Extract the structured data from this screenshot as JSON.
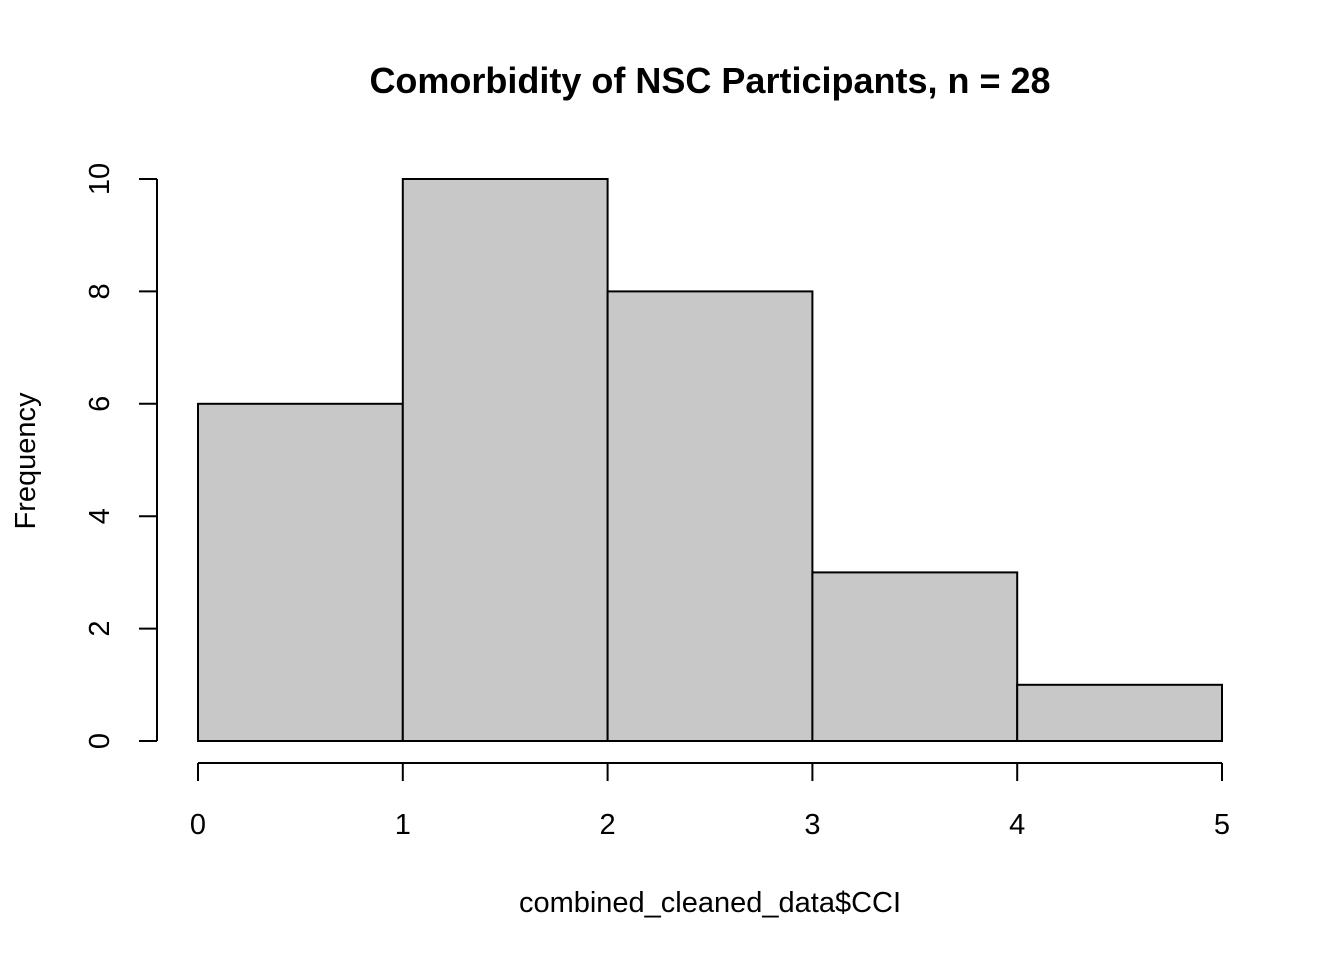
{
  "chart_data": {
    "type": "bar",
    "subtype": "histogram",
    "title": "Comorbidity of NSC Participants, n = 28",
    "xlabel": "combined_cleaned_data$CCI",
    "ylabel": "Frequency",
    "bins": [
      {
        "x_start": 0,
        "x_end": 1,
        "count": 6
      },
      {
        "x_start": 1,
        "x_end": 2,
        "count": 10
      },
      {
        "x_start": 2,
        "x_end": 3,
        "count": 8
      },
      {
        "x_start": 3,
        "x_end": 4,
        "count": 3
      },
      {
        "x_start": 4,
        "x_end": 5,
        "count": 1
      }
    ],
    "x_ticks": [
      "0",
      "1",
      "2",
      "3",
      "4",
      "5"
    ],
    "y_ticks": [
      "0",
      "2",
      "4",
      "6",
      "8",
      "10"
    ],
    "xlim": [
      0,
      5
    ],
    "ylim": [
      0,
      10
    ],
    "grid": false,
    "legend": "none",
    "bar_color": "#c8c8c8",
    "edge_color": "#000000"
  }
}
